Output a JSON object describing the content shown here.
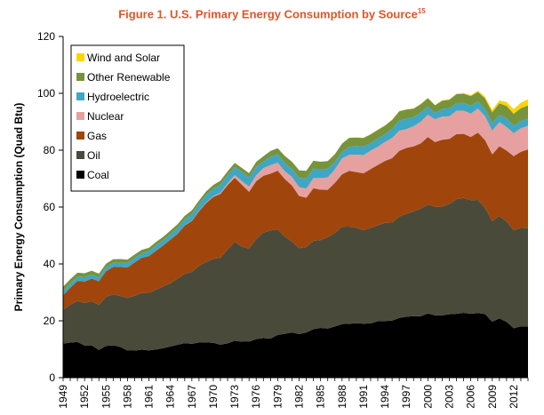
{
  "chart_data": {
    "type": "area",
    "title": "Figure 1. U.S. Primary Energy Consumption by Source",
    "title_superscript": "15",
    "ylabel": "Primary Energy Consumption (Quad Btu)",
    "xlabel": "",
    "ylim": [
      0,
      120
    ],
    "yticks": [
      0,
      20,
      40,
      60,
      80,
      100,
      120
    ],
    "xlim": [
      1949,
      2014
    ],
    "xticks": [
      "1949",
      "1952",
      "1955",
      "1958",
      "1961",
      "1964",
      "1967",
      "1970",
      "1973",
      "1976",
      "1979",
      "1982",
      "1985",
      "1988",
      "1991",
      "1994",
      "1997",
      "2000",
      "2003",
      "2006",
      "2009",
      "2012"
    ],
    "stacked": true,
    "grid": false,
    "legend_position": "top-left",
    "title_color": "#e0542a",
    "x": [
      1949,
      1950,
      1951,
      1952,
      1953,
      1954,
      1955,
      1956,
      1957,
      1958,
      1959,
      1960,
      1961,
      1962,
      1963,
      1964,
      1965,
      1966,
      1967,
      1968,
      1969,
      1970,
      1971,
      1972,
      1973,
      1974,
      1975,
      1976,
      1977,
      1978,
      1979,
      1980,
      1981,
      1982,
      1983,
      1984,
      1985,
      1986,
      1987,
      1988,
      1989,
      1990,
      1991,
      1992,
      1993,
      1994,
      1995,
      1996,
      1997,
      1998,
      1999,
      2000,
      2001,
      2002,
      2003,
      2004,
      2005,
      2006,
      2007,
      2008,
      2009,
      2010,
      2011,
      2012,
      2013,
      2014
    ],
    "series": [
      {
        "name": "Coal",
        "color": "#000000",
        "values": [
          11.98,
          12.35,
          12.55,
          11.31,
          11.37,
          9.72,
          11.17,
          11.35,
          10.82,
          9.53,
          9.52,
          9.84,
          9.62,
          9.91,
          10.41,
          10.96,
          11.58,
          12.14,
          11.91,
          12.33,
          12.38,
          12.26,
          11.6,
          12.08,
          12.97,
          12.66,
          12.66,
          13.58,
          13.92,
          13.77,
          15.04,
          15.42,
          15.91,
          15.32,
          15.89,
          17.07,
          17.48,
          17.26,
          18.01,
          18.85,
          18.93,
          19.17,
          18.99,
          19.12,
          19.84,
          19.91,
          20.09,
          21.0,
          21.45,
          21.66,
          21.62,
          22.58,
          21.91,
          21.9,
          22.32,
          22.47,
          22.8,
          22.45,
          22.75,
          22.39,
          19.69,
          20.82,
          19.66,
          17.38,
          18.04,
          17.99
        ]
      },
      {
        "name": "Oil",
        "color": "#4a4a3a",
        "values": [
          11.88,
          13.32,
          14.43,
          14.96,
          15.56,
          15.84,
          17.25,
          17.94,
          17.93,
          18.53,
          19.32,
          19.92,
          20.22,
          21.05,
          21.7,
          22.3,
          23.25,
          24.4,
          25.28,
          26.98,
          28.34,
          29.52,
          30.56,
          32.95,
          34.84,
          33.45,
          32.73,
          35.17,
          37.12,
          37.97,
          37.12,
          34.2,
          31.93,
          30.23,
          30.05,
          31.05,
          30.92,
          32.2,
          32.87,
          34.22,
          34.21,
          33.55,
          32.85,
          33.53,
          33.74,
          34.56,
          34.44,
          35.68,
          36.16,
          36.82,
          37.84,
          38.26,
          38.19,
          38.23,
          38.81,
          40.29,
          40.39,
          39.96,
          39.77,
          37.28,
          35.4,
          36.01,
          35.28,
          34.44,
          34.61,
          34.76
        ]
      },
      {
        "name": "Gas",
        "color": "#a0460c",
        "values": [
          5.15,
          5.97,
          7.05,
          7.55,
          7.91,
          8.33,
          9.0,
          9.61,
          10.19,
          10.66,
          11.72,
          12.39,
          12.93,
          13.73,
          14.4,
          15.29,
          15.77,
          16.99,
          17.94,
          19.21,
          20.68,
          21.79,
          22.47,
          22.7,
          22.51,
          21.73,
          19.95,
          20.35,
          19.93,
          20.0,
          20.67,
          20.23,
          19.74,
          18.36,
          17.34,
          18.51,
          17.7,
          16.59,
          17.64,
          18.45,
          19.6,
          19.6,
          20.03,
          20.71,
          21.23,
          21.73,
          22.67,
          23.09,
          23.22,
          22.83,
          22.91,
          23.82,
          22.77,
          23.56,
          22.83,
          22.91,
          22.56,
          22.22,
          23.66,
          23.84,
          23.42,
          24.57,
          24.95,
          26.09,
          26.81,
          27.51
        ]
      },
      {
        "name": "Nuclear",
        "color": "#e6a0a0",
        "values": [
          0,
          0,
          0,
          0,
          0,
          0,
          0,
          0,
          0,
          0,
          0,
          0.01,
          0.02,
          0.03,
          0.04,
          0.04,
          0.04,
          0.06,
          0.09,
          0.14,
          0.15,
          0.24,
          0.41,
          0.58,
          0.91,
          1.27,
          1.9,
          2.11,
          2.7,
          3.02,
          2.78,
          2.74,
          3.01,
          3.13,
          3.2,
          3.55,
          4.08,
          4.38,
          4.75,
          5.59,
          5.6,
          6.1,
          6.42,
          6.48,
          6.41,
          6.69,
          7.08,
          7.09,
          6.6,
          7.07,
          7.61,
          7.86,
          8.03,
          8.14,
          7.96,
          8.22,
          8.16,
          8.21,
          8.46,
          8.43,
          8.36,
          8.43,
          8.27,
          8.06,
          8.27,
          8.34
        ]
      },
      {
        "name": "Hydroelectric",
        "color": "#3fa6c4",
        "values": [
          1.42,
          1.42,
          1.45,
          1.5,
          1.44,
          1.39,
          1.41,
          1.49,
          1.52,
          1.59,
          1.55,
          1.61,
          1.66,
          1.82,
          1.77,
          1.89,
          2.06,
          2.06,
          2.35,
          2.35,
          2.65,
          2.63,
          2.82,
          2.86,
          2.86,
          3.18,
          3.16,
          2.98,
          2.33,
          2.94,
          2.93,
          2.9,
          2.76,
          3.27,
          3.53,
          3.39,
          2.97,
          3.07,
          2.63,
          2.33,
          2.84,
          3.05,
          3.02,
          2.62,
          2.89,
          2.68,
          3.21,
          3.59,
          3.64,
          3.3,
          3.27,
          2.81,
          2.24,
          2.69,
          2.83,
          2.69,
          2.7,
          2.87,
          2.45,
          2.51,
          2.67,
          2.54,
          3.1,
          2.63,
          2.56,
          2.47
        ]
      },
      {
        "name": "Other Renewable",
        "color": "#77933c",
        "values": [
          1.55,
          1.56,
          1.44,
          1.39,
          1.32,
          1.27,
          1.25,
          1.25,
          1.24,
          1.23,
          1.21,
          1.2,
          1.21,
          1.21,
          1.21,
          1.24,
          1.25,
          1.27,
          1.27,
          1.28,
          1.31,
          1.35,
          1.38,
          1.4,
          1.42,
          1.47,
          1.5,
          1.71,
          1.84,
          2.04,
          2.15,
          2.49,
          2.6,
          2.63,
          2.71,
          2.72,
          2.78,
          2.66,
          2.69,
          2.88,
          3.14,
          2.95,
          2.99,
          3.1,
          3.03,
          3.08,
          3.14,
          3.23,
          3.21,
          2.91,
          2.94,
          2.96,
          2.65,
          2.87,
          2.98,
          3.09,
          3.24,
          3.33,
          3.42,
          3.7,
          3.78,
          4.13,
          4.32,
          4.22,
          4.48,
          4.68
        ]
      },
      {
        "name": "Wind and Solar",
        "color": "#ffd400",
        "values": [
          0,
          0,
          0,
          0,
          0,
          0,
          0,
          0,
          0,
          0,
          0,
          0,
          0,
          0,
          0,
          0,
          0,
          0,
          0,
          0,
          0,
          0,
          0,
          0,
          0,
          0,
          0,
          0,
          0,
          0,
          0,
          0,
          0,
          0,
          0.01,
          0.01,
          0.01,
          0.01,
          0.02,
          0.02,
          0.09,
          0.09,
          0.09,
          0.09,
          0.1,
          0.1,
          0.1,
          0.11,
          0.1,
          0.1,
          0.11,
          0.12,
          0.12,
          0.17,
          0.18,
          0.21,
          0.24,
          0.34,
          0.42,
          0.64,
          0.83,
          1.02,
          1.33,
          1.6,
          1.9,
          2.15
        ]
      }
    ]
  }
}
